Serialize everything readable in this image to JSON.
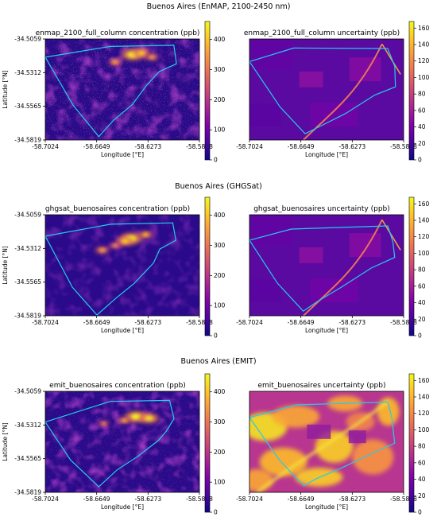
{
  "figure": {
    "rows": [
      {
        "title": "Buenos Aires (EnMAP, 2100-2450 nm)",
        "panels": [
          {
            "title": "enmap_2100_full_column concentration (ppb)",
            "kind": "concentration"
          },
          {
            "title": "enmap_2100_full_column uncertainty (ppb)",
            "kind": "uncertainty"
          }
        ]
      },
      {
        "title": "Buenos Aires (GHGSat)",
        "panels": [
          {
            "title": "ghgsat_buenosaires concentration (ppb)",
            "kind": "concentration"
          },
          {
            "title": "ghgsat_buenosaires uncertainty (ppb)",
            "kind": "uncertainty"
          }
        ]
      },
      {
        "title": "Buenos Aires (EMIT)",
        "panels": [
          {
            "title": "emit_buenosaires concentration (ppb)",
            "kind": "concentration"
          },
          {
            "title": "emit_buenosaires uncertainty (ppb)",
            "kind": "uncertainty"
          }
        ]
      }
    ]
  },
  "chart_data": [
    {
      "type": "heatmap",
      "title": "enmap_2100_full_column concentration (ppb)",
      "xlabel": "Longitude [°E]",
      "ylabel": "Latitude [°N]",
      "xticks": [
        "-58.7024",
        "-58.6649",
        "-58.6273",
        "-58.5898"
      ],
      "yticks": [
        "-34.5059",
        "-34.5312",
        "-34.5565",
        "-34.5819"
      ],
      "colorbar_ticks": [
        0,
        100,
        200,
        300,
        400
      ],
      "colorbar_range": [
        0,
        460
      ],
      "colormap": "plasma",
      "roi_color": "#22ccee",
      "roi_polygon": [
        [
          -58.7024,
          -34.5196
        ],
        [
          -58.6551,
          -34.5115
        ],
        [
          -58.6085,
          -34.5106
        ],
        [
          -58.6066,
          -34.5246
        ],
        [
          -58.6191,
          -34.5304
        ],
        [
          -58.6284,
          -34.5408
        ],
        [
          -58.6389,
          -34.5553
        ],
        [
          -58.6528,
          -34.5673
        ],
        [
          -58.6633,
          -34.5794
        ],
        [
          -58.682,
          -34.5558
        ],
        [
          -58.7024,
          -34.5196
        ]
      ],
      "plume_hotspots": [
        [
          -58.6386,
          -34.5177,
          1
        ],
        [
          -58.6321,
          -34.5165,
          0.7
        ],
        [
          -58.6514,
          -34.5233,
          0.45
        ],
        [
          -58.6245,
          -34.5196,
          0.45
        ]
      ]
    },
    {
      "type": "heatmap",
      "title": "enmap_2100_full_column uncertainty (ppb)",
      "xlabel": "Longitude [°E]",
      "ylabel": "",
      "xticks": [
        "-58.7024",
        "-58.6649",
        "-58.6273",
        "-58.5898"
      ],
      "yticks": [],
      "colorbar_ticks": [
        0,
        20,
        40,
        60,
        80,
        100,
        120,
        140,
        160
      ],
      "colorbar_range": [
        0,
        168
      ],
      "colormap": "plasma",
      "roi_color": "#22ccee",
      "roi_polygon": [
        [
          -58.7024,
          -34.5229
        ],
        [
          -58.6701,
          -34.5127
        ],
        [
          -58.6014,
          -34.5131
        ],
        [
          -58.5963,
          -34.5265
        ],
        [
          -58.5958,
          -34.5419
        ],
        [
          -58.6108,
          -34.548
        ],
        [
          -58.6322,
          -34.562
        ],
        [
          -58.6547,
          -34.5736
        ],
        [
          -58.6618,
          -34.5772
        ],
        [
          -58.6802,
          -34.5568
        ],
        [
          -58.7024,
          -34.5229
        ]
      ]
    },
    {
      "type": "heatmap",
      "title": "ghgsat_buenosaires concentration (ppb)",
      "xlabel": "Longitude [°E]",
      "ylabel": "Latitude [°N]",
      "xticks": [
        "-58.7024",
        "-58.6649",
        "-58.6273",
        "-58.5898"
      ],
      "yticks": [
        "-34.5059",
        "-34.5312",
        "-34.5565",
        "-34.5819"
      ],
      "colorbar_ticks": [
        0,
        100,
        200,
        300,
        400
      ],
      "colorbar_range": [
        0,
        460
      ],
      "colormap": "plasma",
      "roi_color": "#22ccee",
      "roi_polygon": [
        [
          -58.7024,
          -34.522
        ],
        [
          -58.6547,
          -34.513
        ],
        [
          -58.6093,
          -34.512
        ],
        [
          -58.607,
          -34.5251
        ],
        [
          -58.6187,
          -34.5317
        ],
        [
          -58.6233,
          -34.5421
        ],
        [
          -58.6374,
          -34.5575
        ],
        [
          -58.6501,
          -34.5681
        ],
        [
          -58.6647,
          -34.5813
        ],
        [
          -58.6826,
          -34.5604
        ],
        [
          -58.7024,
          -34.522
        ]
      ],
      "plume_hotspots": [
        [
          -58.6397,
          -34.5238,
          1
        ],
        [
          -58.6442,
          -34.5258,
          0.7
        ],
        [
          -58.6608,
          -34.5325,
          0.5
        ],
        [
          -58.6291,
          -34.5209,
          0.55
        ],
        [
          -58.6513,
          -34.529,
          0.35
        ]
      ]
    },
    {
      "type": "heatmap",
      "title": "ghgsat_buenosaires uncertainty (ppb)",
      "xlabel": "Longitude [°E]",
      "ylabel": "",
      "xticks": [
        "-58.7024",
        "-58.6649",
        "-58.6273",
        "-58.5898"
      ],
      "yticks": [],
      "colorbar_ticks": [
        0,
        20,
        40,
        60,
        80,
        100,
        120,
        140,
        160
      ],
      "colorbar_range": [
        0,
        168
      ],
      "colormap": "plasma",
      "roi_color": "#22ccee",
      "roi_polygon": [
        [
          -58.7024,
          -34.5251
        ],
        [
          -58.6719,
          -34.5167
        ],
        [
          -58.6014,
          -34.5143
        ],
        [
          -58.5977,
          -34.5261
        ],
        [
          -58.5963,
          -34.538
        ],
        [
          -58.6135,
          -34.546
        ],
        [
          -58.6356,
          -34.5606
        ],
        [
          -58.6533,
          -34.5715
        ],
        [
          -58.6631,
          -34.5784
        ],
        [
          -58.682,
          -34.5573
        ],
        [
          -58.7024,
          -34.5251
        ]
      ]
    },
    {
      "type": "heatmap",
      "title": "emit_buenosaires concentration (ppb)",
      "xlabel": "Longitude [°E]",
      "ylabel": "Latitude [°N]",
      "xticks": [
        "-58.7024",
        "-58.6649",
        "-58.6273",
        "-58.5898"
      ],
      "yticks": [
        "-34.5059",
        "-34.5312",
        "-34.5565",
        "-34.5819"
      ],
      "colorbar_ticks": [
        0,
        100,
        200,
        300,
        400
      ],
      "colorbar_range": [
        0,
        460
      ],
      "colormap": "plasma",
      "roi_color": "#22ccee",
      "roi_polygon": [
        [
          -58.7024,
          -34.529
        ],
        [
          -58.6551,
          -34.5135
        ],
        [
          -58.6116,
          -34.5127
        ],
        [
          -58.6084,
          -34.5265
        ],
        [
          -58.614,
          -34.5359
        ],
        [
          -58.62,
          -34.543
        ],
        [
          -58.6349,
          -34.5549
        ],
        [
          -58.65,
          -34.565
        ],
        [
          -58.6633,
          -34.5777
        ],
        [
          -58.684,
          -34.5575
        ],
        [
          -58.7024,
          -34.529
        ]
      ],
      "plume_hotspots": [
        [
          -58.6362,
          -34.525,
          1
        ],
        [
          -58.6266,
          -34.5262,
          0.85
        ],
        [
          -58.6447,
          -34.5278,
          0.45
        ],
        [
          -58.6596,
          -34.53,
          0.3
        ]
      ]
    },
    {
      "type": "heatmap",
      "title": "emit_buenosaires uncertainty (ppb)",
      "xlabel": "Longitude [°E]",
      "ylabel": "",
      "xticks": [
        "-58.7024",
        "-58.6649",
        "-58.6273",
        "-58.5898"
      ],
      "yticks": [],
      "colorbar_ticks": [
        0,
        20,
        40,
        60,
        80,
        100,
        120,
        140,
        160
      ],
      "colorbar_range": [
        0,
        168
      ],
      "colormap": "plasma",
      "roi_color": "#22ccee",
      "roi_polygon": [
        [
          -58.7024,
          -34.5256
        ],
        [
          -58.6682,
          -34.5161
        ],
        [
          -58.6014,
          -34.514
        ],
        [
          -58.5986,
          -34.5248
        ],
        [
          -58.5963,
          -34.545
        ],
        [
          -58.6117,
          -34.552
        ],
        [
          -58.6328,
          -34.5624
        ],
        [
          -58.6538,
          -34.5718
        ],
        [
          -58.6627,
          -34.5769
        ],
        [
          -58.6802,
          -34.558
        ],
        [
          -58.7024,
          -34.5256
        ]
      ]
    }
  ]
}
